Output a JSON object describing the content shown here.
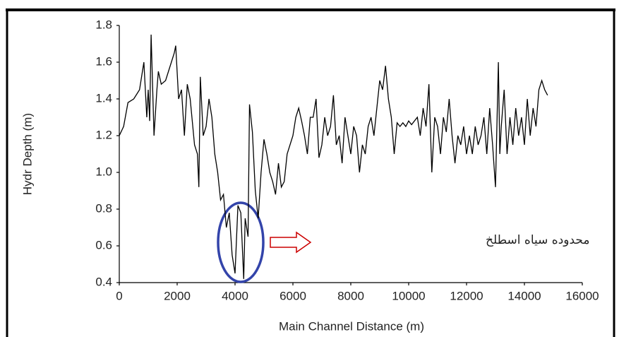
{
  "chart_data": {
    "type": "line",
    "x_label": "Main Channel Distance (m)",
    "y_label": "Hydr Depth (m)",
    "annotation": "محدوده سیاه اسطلخ",
    "color": "#000000",
    "x": [
      0,
      150,
      300,
      500,
      700,
      850,
      950,
      1000,
      1050,
      1100,
      1200,
      1300,
      1350,
      1450,
      1600,
      1800,
      1900,
      1950,
      2050,
      2150,
      2250,
      2350,
      2450,
      2600,
      2700,
      2750,
      2800,
      2900,
      3000,
      3100,
      3200,
      3300,
      3400,
      3500,
      3600,
      3700,
      3800,
      3900,
      4000,
      4100,
      4200,
      4300,
      4350,
      4450,
      4500,
      4600,
      4700,
      4800,
      4900,
      5000,
      5100,
      5200,
      5300,
      5400,
      5500,
      5600,
      5700,
      5800,
      6000,
      6100,
      6200,
      6300,
      6400,
      6500,
      6600,
      6700,
      6800,
      6900,
      7000,
      7100,
      7200,
      7300,
      7400,
      7500,
      7600,
      7700,
      7800,
      7900,
      8000,
      8100,
      8200,
      8300,
      8400,
      8500,
      8600,
      8700,
      8800,
      8900,
      9000,
      9100,
      9200,
      9300,
      9400,
      9500,
      9600,
      9700,
      9800,
      9900,
      10000,
      10100,
      10300,
      10400,
      10500,
      10600,
      10700,
      10800,
      10900,
      11000,
      11100,
      11200,
      11300,
      11400,
      11500,
      11600,
      11700,
      11800,
      11900,
      12000,
      12100,
      12200,
      12300,
      12400,
      12500,
      12600,
      12700,
      12800,
      12900,
      13000,
      13100,
      13150,
      13200,
      13300,
      13400,
      13500,
      13600,
      13700,
      13800,
      13900,
      14000,
      14100,
      14200,
      14300,
      14400,
      14500,
      14600,
      14700,
      14800
    ],
    "values": [
      1.2,
      1.25,
      1.38,
      1.4,
      1.45,
      1.6,
      1.3,
      1.45,
      1.28,
      1.75,
      1.2,
      1.45,
      1.55,
      1.48,
      1.5,
      1.6,
      1.65,
      1.69,
      1.4,
      1.45,
      1.2,
      1.48,
      1.4,
      1.15,
      1.1,
      0.92,
      1.52,
      1.2,
      1.25,
      1.4,
      1.3,
      1.1,
      1.0,
      0.85,
      0.88,
      0.7,
      0.78,
      0.55,
      0.45,
      0.82,
      0.78,
      0.42,
      0.75,
      0.65,
      1.37,
      1.22,
      0.9,
      0.75,
      1.0,
      1.18,
      1.1,
      1.0,
      0.95,
      0.88,
      1.05,
      0.92,
      0.95,
      1.1,
      1.2,
      1.3,
      1.35,
      1.28,
      1.2,
      1.1,
      1.3,
      1.3,
      1.4,
      1.08,
      1.15,
      1.3,
      1.2,
      1.25,
      1.42,
      1.15,
      1.2,
      1.05,
      1.3,
      1.2,
      1.1,
      1.25,
      1.2,
      1.0,
      1.15,
      1.1,
      1.25,
      1.3,
      1.2,
      1.35,
      1.5,
      1.45,
      1.58,
      1.4,
      1.3,
      1.1,
      1.27,
      1.25,
      1.27,
      1.25,
      1.28,
      1.26,
      1.3,
      1.2,
      1.35,
      1.25,
      1.48,
      1.0,
      1.3,
      1.25,
      1.1,
      1.3,
      1.22,
      1.4,
      1.2,
      1.05,
      1.2,
      1.15,
      1.25,
      1.1,
      1.2,
      1.1,
      1.25,
      1.15,
      1.2,
      1.3,
      1.1,
      1.35,
      1.15,
      0.92,
      1.6,
      1.1,
      1.25,
      1.45,
      1.1,
      1.3,
      1.15,
      1.35,
      1.2,
      1.3,
      1.15,
      1.4,
      1.2,
      1.35,
      1.25,
      1.45,
      1.5,
      1.45,
      1.42
    ],
    "xlim": [
      0,
      16000
    ],
    "xticks": [
      0,
      2000,
      4000,
      6000,
      8000,
      10000,
      12000,
      14000,
      16000
    ],
    "ylim": [
      0.4,
      1.8
    ],
    "yticks": [
      0.4,
      0.6,
      0.8,
      {
        "value": 1,
        "label": "1.0"
      },
      1.2,
      1.4,
      1.6,
      1.8
    ]
  }
}
